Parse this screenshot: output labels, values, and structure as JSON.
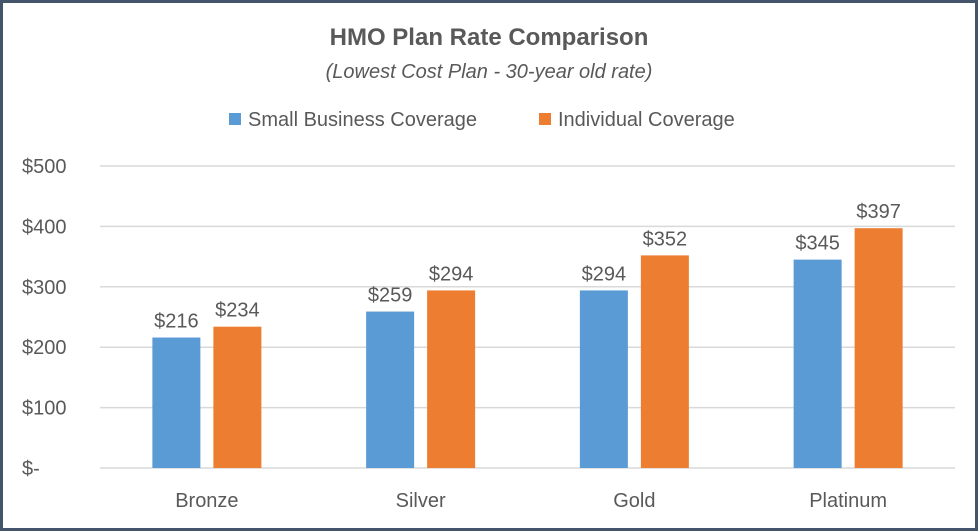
{
  "chart_data": {
    "type": "bar",
    "title": "HMO Plan Rate Comparison",
    "subtitle": "(Lowest Cost Plan - 30-year old rate)",
    "categories": [
      "Bronze",
      "Silver",
      "Gold",
      "Platinum"
    ],
    "series": [
      {
        "name": "Small Business Coverage",
        "values": [
          216,
          259,
          294,
          345
        ],
        "labels": [
          "$216",
          "$259",
          "$294",
          "$345"
        ],
        "color": "#5B9BD5"
      },
      {
        "name": "Individual Coverage",
        "values": [
          234,
          294,
          352,
          397
        ],
        "labels": [
          "$234",
          "$294",
          "$352",
          "$397"
        ],
        "color": "#ED7D31"
      }
    ],
    "ylim": [
      0,
      500
    ],
    "yticks": [
      0,
      100,
      200,
      300,
      400,
      500
    ],
    "ytick_labels": [
      "$-",
      "$100",
      "$200",
      "$300",
      "$400",
      "$500"
    ],
    "grid": true,
    "legend": "top",
    "xlabel": "",
    "ylabel": ""
  }
}
